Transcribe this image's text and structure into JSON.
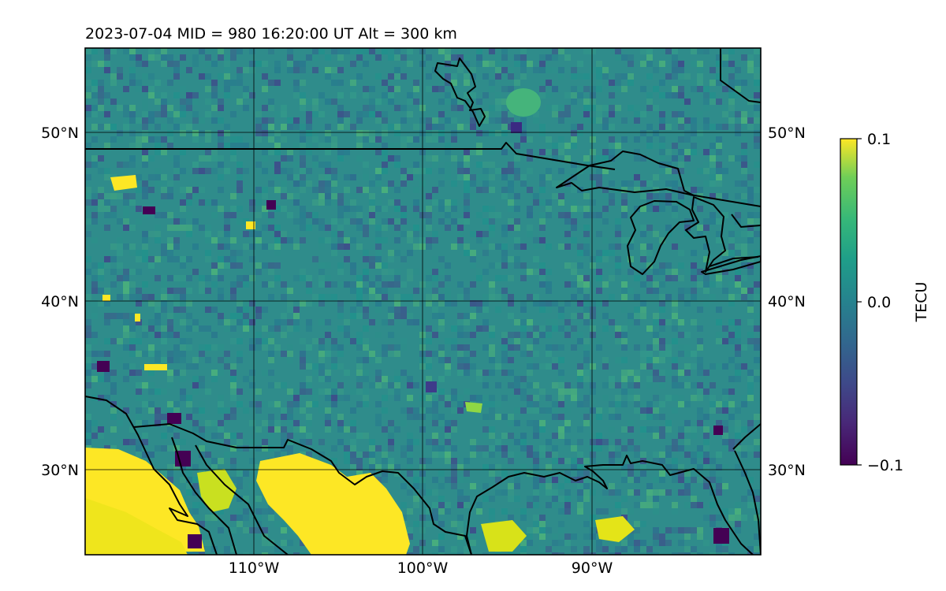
{
  "title": "2023-07-04  MID = 980    16:20:00  UT  Alt = 300 km",
  "map": {
    "lat_labels": [
      "50°N",
      "40°N",
      "30°N"
    ],
    "lon_labels": [
      "110°W",
      "100°W",
      "90°W"
    ],
    "lat_values": [
      50,
      40,
      30
    ],
    "lon_values": [
      -110,
      -100,
      -90
    ],
    "extent": {
      "lon_min": -120,
      "lon_max": -80,
      "lat_min": 25,
      "lat_max": 55
    }
  },
  "colorbar": {
    "label": "TECU",
    "tick_labels": [
      "0.1",
      "0.0",
      "−0.1"
    ],
    "tick_values": [
      0.1,
      0.0,
      -0.1
    ],
    "colormap": "viridis"
  },
  "colors": {
    "background_tec": "#2f8c8b",
    "high_tec": "#fde725",
    "low_tec": "#440154",
    "coastline": "#000000"
  }
}
